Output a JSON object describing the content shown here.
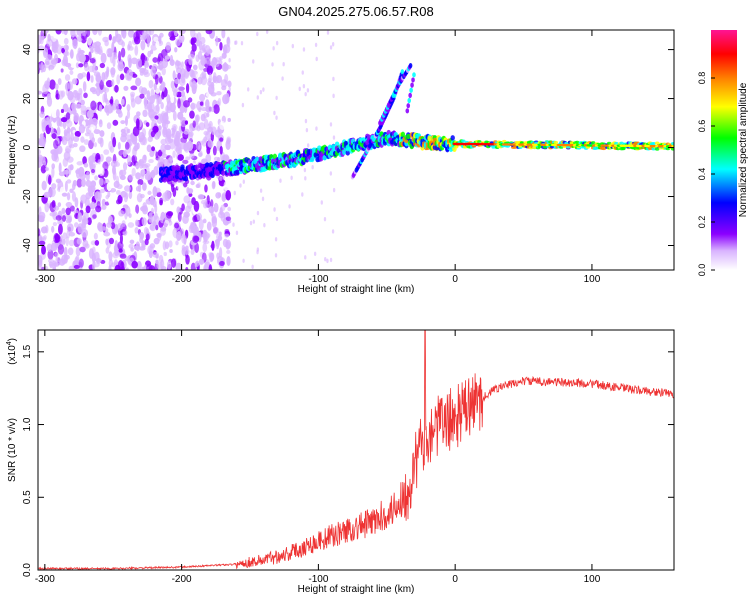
{
  "figure": {
    "title": "GN04.2025.275.06.57.R08"
  },
  "chart_data": [
    {
      "type": "heatmap",
      "name": "spectrogram",
      "xlabel": "Height of straight line (km)",
      "ylabel": "Frequency (Hz)",
      "xlim": [
        -305,
        160
      ],
      "ylim": [
        -50,
        48
      ],
      "xticks": [
        -300,
        -200,
        -100,
        0,
        100
      ],
      "yticks": [
        -40,
        -20,
        0,
        20,
        40
      ],
      "colorbar": {
        "label": "Normalized spectral amplitude",
        "range": [
          0.0,
          1.0
        ],
        "ticks": [
          0.0,
          0.2,
          0.4,
          0.6,
          0.8
        ],
        "tick_labels": [
          "0.0",
          "0.2",
          "0.4",
          "0.6",
          "0.8"
        ],
        "colors": [
          "#ffffff",
          "#d9b3ff",
          "#8b00ff",
          "#0000ff",
          "#00ffff",
          "#00ff00",
          "#ffff00",
          "#ff7f00",
          "#ff0000",
          "#ff1493"
        ]
      },
      "features": {
        "noise_region_x": [
          -305,
          -165
        ],
        "main_trend": [
          {
            "x": -210,
            "y": -11
          },
          {
            "x": -160,
            "y": -8
          },
          {
            "x": -120,
            "y": -5
          },
          {
            "x": -80,
            "y": 0
          },
          {
            "x": -50,
            "y": 4
          },
          {
            "x": -35,
            "y": 3
          },
          {
            "x": -20,
            "y": 2
          },
          {
            "x": 0,
            "y": 1.5
          },
          {
            "x": 80,
            "y": 1
          },
          {
            "x": 160,
            "y": 0.5
          }
        ],
        "rising_branches": [
          [
            {
              "x": -75,
              "y": -12
            },
            {
              "x": -55,
              "y": 8
            },
            {
              "x": -45,
              "y": 20
            },
            {
              "x": -38,
              "y": 32
            }
          ],
          [
            {
              "x": -55,
              "y": 10
            },
            {
              "x": -42,
              "y": 25
            },
            {
              "x": -32,
              "y": 34
            }
          ],
          [
            {
              "x": -35,
              "y": 15
            },
            {
              "x": -30,
              "y": 30
            }
          ]
        ]
      }
    },
    {
      "type": "line",
      "name": "snr",
      "xlabel": "Height of straight line (km)",
      "ylabel": "SNR (10 * v/v)",
      "scale_note": "(x10",
      "scale_exp": "4",
      "ylim": [
        0.0,
        1.65
      ],
      "xlim": [
        -305,
        160
      ],
      "yticks": [
        0.0,
        0.5,
        1.0,
        1.5
      ],
      "ytick_labels": [
        "0.0",
        "0.5",
        "1.0",
        "1.5"
      ],
      "xticks": [
        -300,
        -200,
        -100,
        0,
        100
      ],
      "color": "#ee3333",
      "envelope": [
        {
          "x": -305,
          "y": 0.01
        },
        {
          "x": -250,
          "y": 0.01
        },
        {
          "x": -200,
          "y": 0.02
        },
        {
          "x": -160,
          "y": 0.04
        },
        {
          "x": -140,
          "y": 0.07
        },
        {
          "x": -120,
          "y": 0.12
        },
        {
          "x": -100,
          "y": 0.2
        },
        {
          "x": -80,
          "y": 0.27
        },
        {
          "x": -60,
          "y": 0.33
        },
        {
          "x": -45,
          "y": 0.42
        },
        {
          "x": -35,
          "y": 0.55
        },
        {
          "x": -27,
          "y": 0.8
        },
        {
          "x": -20,
          "y": 0.95
        },
        {
          "x": -10,
          "y": 1.0
        },
        {
          "x": 0,
          "y": 1.05
        },
        {
          "x": 15,
          "y": 1.15
        },
        {
          "x": 30,
          "y": 1.25
        },
        {
          "x": 50,
          "y": 1.3
        },
        {
          "x": 80,
          "y": 1.29
        },
        {
          "x": 100,
          "y": 1.28
        },
        {
          "x": 130,
          "y": 1.24
        },
        {
          "x": 160,
          "y": 1.21
        }
      ],
      "peak": {
        "x": -22,
        "y": 1.65
      }
    }
  ],
  "tick_label_strings": {
    "x": [
      "-300",
      "-200",
      "-100",
      "0",
      "100"
    ],
    "y_top": [
      "-40",
      "-20",
      "0",
      "20",
      "40"
    ]
  }
}
